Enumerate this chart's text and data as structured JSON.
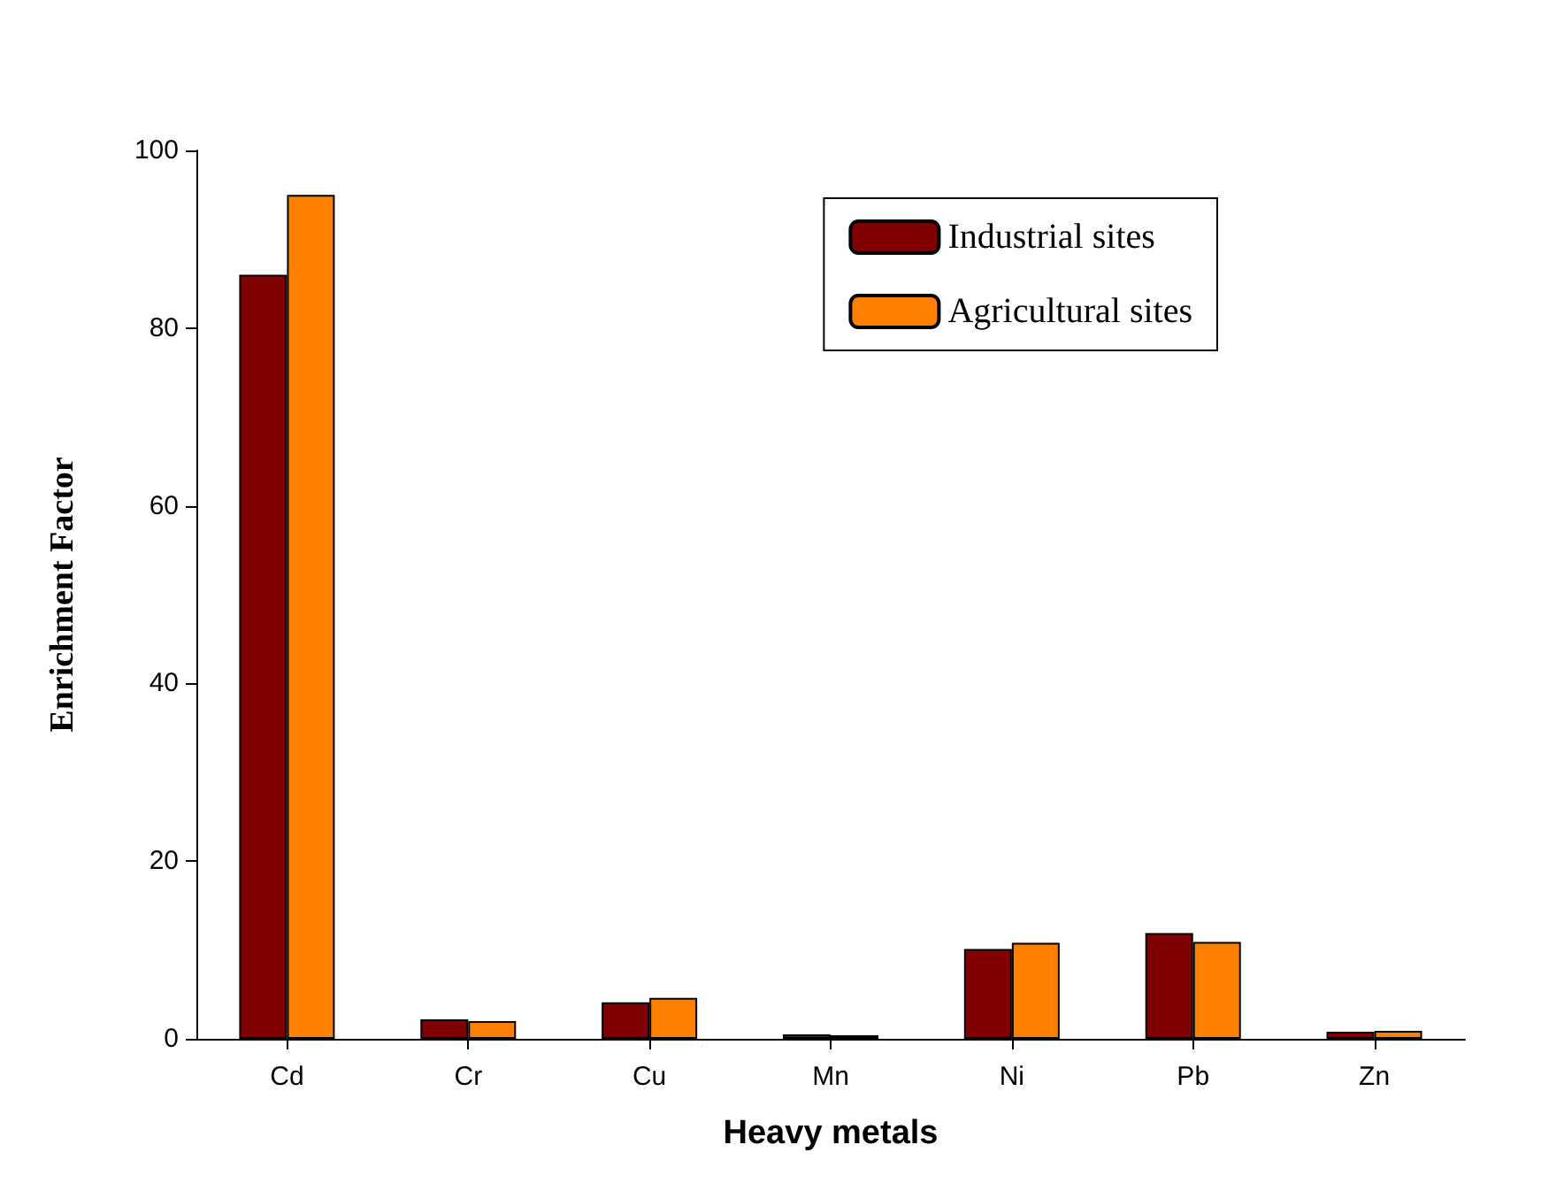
{
  "chart_data": {
    "type": "bar",
    "xlabel": "Heavy metals",
    "ylabel": "Enrichment Factor",
    "categories": [
      "Cd",
      "Cr",
      "Cu",
      "Mn",
      "Ni",
      "Pb",
      "Zn"
    ],
    "series": [
      {
        "name": "Industrial sites",
        "color": "#800000",
        "values": [
          86,
          2.2,
          4.1,
          0.5,
          10.1,
          11.9,
          0.8
        ]
      },
      {
        "name": "Agricultural sites",
        "color": "#ff8000",
        "values": [
          95,
          2,
          4.6,
          0.4,
          10.8,
          10.9,
          0.9
        ]
      }
    ],
    "ylim": [
      0,
      100
    ],
    "yticks": [
      0,
      20,
      40,
      60,
      80,
      100
    ],
    "grid": false,
    "legend": "top right"
  }
}
